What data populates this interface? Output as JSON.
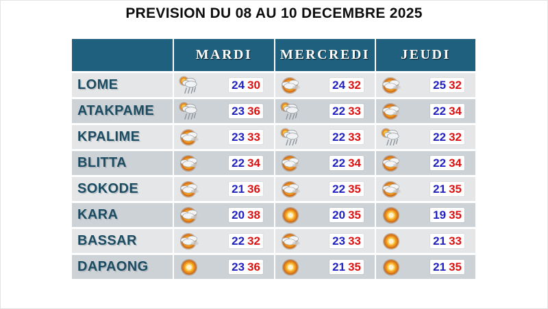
{
  "title": "PREVISION DU 08 AU 10 DECEMBRE 2025",
  "colors": {
    "header_teal": "#20607f",
    "row_dark": "#cdd2d7",
    "row_light": "#e4e6e8",
    "city_text": "#1c4c61",
    "temp_min_blue": "#2020c0",
    "temp_max_red": "#dd1111"
  },
  "table": {
    "day_headers": [
      "MARDI",
      "MERCREDI",
      "JEUDI"
    ],
    "rows": [
      {
        "city": "LOME",
        "days": [
          {
            "icon": "rain-cloud-icon",
            "min": "24",
            "max": "30"
          },
          {
            "icon": "sun-cloud-icon",
            "min": "24",
            "max": "32"
          },
          {
            "icon": "sun-cloud-icon",
            "min": "25",
            "max": "32"
          }
        ]
      },
      {
        "city": "ATAKPAME",
        "days": [
          {
            "icon": "rain-cloud-icon",
            "min": "23",
            "max": "36"
          },
          {
            "icon": "rain-cloud-icon",
            "min": "22",
            "max": "33"
          },
          {
            "icon": "sun-cloud-icon",
            "min": "22",
            "max": "34"
          }
        ]
      },
      {
        "city": "KPALIME",
        "days": [
          {
            "icon": "sun-cloud-icon",
            "min": "23",
            "max": "33"
          },
          {
            "icon": "rain-cloud-icon",
            "min": "22",
            "max": "33"
          },
          {
            "icon": "rain-cloud-icon",
            "min": "22",
            "max": "32"
          }
        ]
      },
      {
        "city": "BLITTA",
        "days": [
          {
            "icon": "sun-cloud-icon",
            "min": "22",
            "max": "34"
          },
          {
            "icon": "sun-cloud-icon",
            "min": "22",
            "max": "34"
          },
          {
            "icon": "sun-cloud-icon",
            "min": "22",
            "max": "34"
          }
        ]
      },
      {
        "city": "SOKODE",
        "days": [
          {
            "icon": "sun-cloud-icon",
            "min": "21",
            "max": "36"
          },
          {
            "icon": "sun-cloud-icon",
            "min": "22",
            "max": "35"
          },
          {
            "icon": "sun-cloud-icon",
            "min": "21",
            "max": "35"
          }
        ]
      },
      {
        "city": "KARA",
        "days": [
          {
            "icon": "sun-cloud-icon",
            "min": "20",
            "max": "38"
          },
          {
            "icon": "sun-icon",
            "min": "20",
            "max": "35"
          },
          {
            "icon": "sun-icon",
            "min": "19",
            "max": "35"
          }
        ]
      },
      {
        "city": "BASSAR",
        "days": [
          {
            "icon": "sun-cloud-icon",
            "min": "22",
            "max": "32"
          },
          {
            "icon": "sun-cloud-icon",
            "min": "23",
            "max": "33"
          },
          {
            "icon": "sun-icon",
            "min": "21",
            "max": "33"
          }
        ]
      },
      {
        "city": "DAPAONG",
        "days": [
          {
            "icon": "sun-icon",
            "min": "23",
            "max": "36"
          },
          {
            "icon": "sun-icon",
            "min": "21",
            "max": "35"
          },
          {
            "icon": "sun-icon",
            "min": "21",
            "max": "35"
          }
        ]
      }
    ]
  }
}
